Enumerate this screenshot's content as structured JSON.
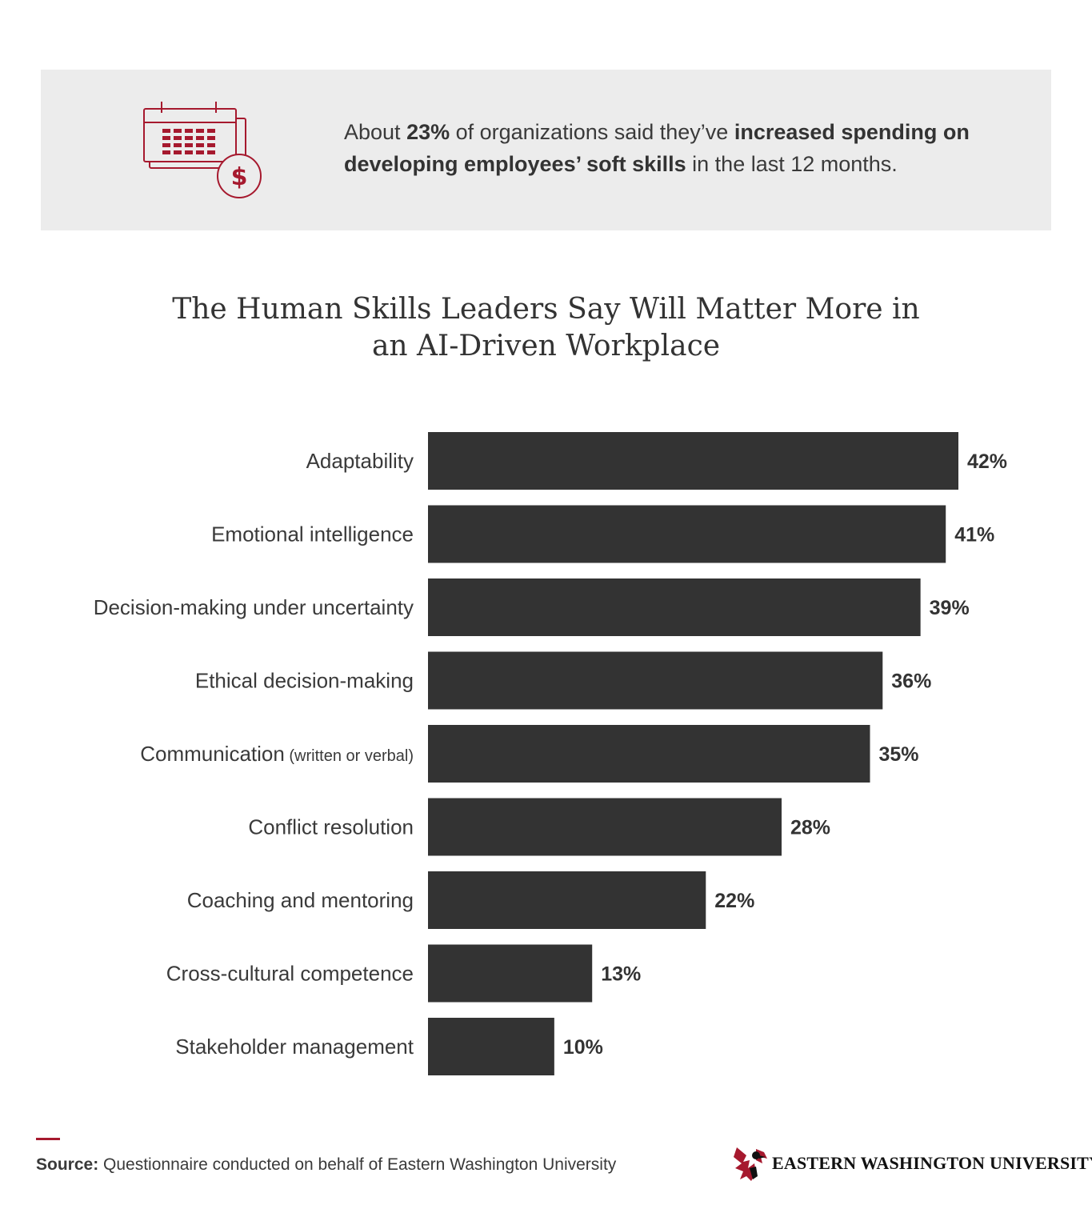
{
  "stat": {
    "prefix": "About ",
    "percent": "23%",
    "middle": " of organizations said they’ve ",
    "highlight": "increased spending on developing employees’ soft skills",
    "suffix": " in the last 12 months.",
    "icon": "calendar-dollar-icon",
    "icon_color": "#a6192e"
  },
  "chart_data": {
    "type": "bar",
    "orientation": "horizontal",
    "title_line1": "The Human Skills Leaders Say Will Matter More in",
    "title_line2": "an AI-Driven Workplace",
    "categories": [
      "Adaptability",
      "Emotional intelligence",
      "Decision-making under uncertainty",
      "Ethical decision-making",
      "Communication",
      "Conflict resolution",
      "Coaching and mentoring",
      "Cross-cultural competence",
      "Stakeholder management"
    ],
    "category_notes": [
      "",
      "",
      "",
      "",
      "(written or verbal)",
      "",
      "",
      "",
      ""
    ],
    "values": [
      42,
      41,
      39,
      36,
      35,
      28,
      22,
      13,
      10
    ],
    "value_labels": [
      "42%",
      "41%",
      "39%",
      "36%",
      "35%",
      "28%",
      "22%",
      "13%",
      "10%"
    ],
    "bar_color": "#333333",
    "xlim": [
      0,
      42
    ],
    "grid": false,
    "legend": "none"
  },
  "footer": {
    "source_label": "Source:",
    "source_text": " Questionnaire conducted on behalf of Eastern Washington University",
    "logo_text": "EASTERN WASHINGTON UNIVERSITY",
    "logo_icon": "eagle-icon",
    "accent_color": "#a6192e"
  }
}
